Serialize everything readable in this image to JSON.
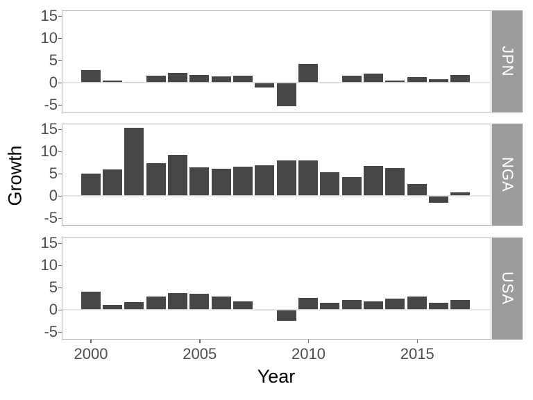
{
  "chart_data": {
    "type": "bar",
    "title": "",
    "xlabel": "Year",
    "ylabel": "Growth",
    "facet_layout": "rows, strip labels on right side",
    "x": [
      2000,
      2001,
      2002,
      2003,
      2004,
      2005,
      2006,
      2007,
      2008,
      2009,
      2010,
      2011,
      2012,
      2013,
      2014,
      2015,
      2016,
      2017
    ],
    "x_ticks": [
      2000,
      2005,
      2010,
      2015
    ],
    "y_ticks": [
      15,
      10,
      5,
      0,
      -5
    ],
    "ylim": [
      -6.7,
      16.3
    ],
    "grid": "light horizontal line at y=0 only, drawn over bars",
    "series": [
      {
        "name": "JPN",
        "values": [
          2.8,
          0.4,
          0.1,
          1.5,
          2.2,
          1.7,
          1.4,
          1.6,
          -1.1,
          -5.4,
          4.2,
          -0.1,
          1.5,
          2.0,
          0.4,
          1.2,
          0.8,
          1.7
        ]
      },
      {
        "name": "NGA",
        "values": [
          5.0,
          5.9,
          15.3,
          7.3,
          9.2,
          6.4,
          6.1,
          6.6,
          6.8,
          8.0,
          8.0,
          5.3,
          4.2,
          6.7,
          6.3,
          2.7,
          -1.6,
          0.8
        ]
      },
      {
        "name": "USA",
        "values": [
          4.1,
          1.0,
          1.7,
          2.9,
          3.8,
          3.5,
          2.9,
          1.9,
          -0.1,
          -2.5,
          2.6,
          1.6,
          2.2,
          1.8,
          2.5,
          2.9,
          1.6,
          2.2
        ]
      }
    ],
    "colors": {
      "bar_fill": "#464646",
      "strip_background": "#9c9c9c",
      "strip_text": "#ffffff",
      "panel_border": "#b4b4b4",
      "zero_line": "#e0e0e0",
      "tick_label": "#4d4d4d",
      "tick_mark": "#666666",
      "axis_title": "#000000",
      "background": "#ffffff"
    }
  }
}
